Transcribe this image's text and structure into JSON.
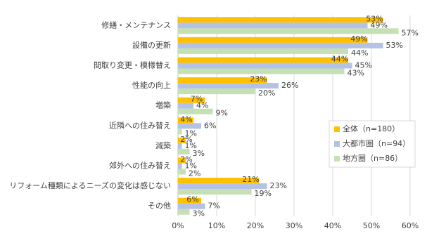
{
  "chart_data": {
    "type": "hbar",
    "categories": [
      "修繕・メンテナンス",
      "設備の更新",
      "間取り変更・模様替え",
      "性能の向上",
      "増築",
      "近隣への住み替え",
      "減築",
      "郊外への住み替え",
      "リフォーム種類によるニーズの変化は感じない",
      "その他"
    ],
    "series": [
      {
        "name": "全体（n=180）",
        "color": "#FFC000",
        "values": [
          53,
          49,
          44,
          23,
          7,
          4,
          2,
          2,
          21,
          6
        ],
        "value_labels": [
          "53%",
          "49%",
          "44%",
          "23%",
          "7%",
          "4%",
          "2%",
          "2%",
          "21%",
          "6%"
        ]
      },
      {
        "name": "大都市圏（n=94）",
        "color": "#B4C2E6",
        "values": [
          49,
          53,
          45,
          26,
          4,
          6,
          1,
          1,
          23,
          7
        ],
        "value_labels": [
          "49%",
          "53%",
          "45%",
          "26%",
          "4%",
          "6%",
          "1%",
          "1%",
          "23%",
          "7%"
        ]
      },
      {
        "name": "地方圏（n=86）",
        "color": "#C5E0B4",
        "values": [
          57,
          44,
          43,
          20,
          9,
          1,
          3,
          2,
          19,
          3
        ],
        "value_labels": [
          "57%",
          "44%",
          "43%",
          "20%",
          "9%",
          "1%",
          "3%",
          "2%",
          "19%",
          "3%"
        ]
      }
    ],
    "xlim": [
      0,
      60
    ],
    "xticks": [
      {
        "value": 0,
        "label": "0%"
      },
      {
        "value": 10,
        "label": "10%"
      },
      {
        "value": 20,
        "label": "20%"
      },
      {
        "value": 30,
        "label": "30%"
      },
      {
        "value": 40,
        "label": "40%"
      },
      {
        "value": 50,
        "label": "50%"
      },
      {
        "value": 60,
        "label": "60%"
      }
    ],
    "grid": true,
    "legend": "right"
  }
}
